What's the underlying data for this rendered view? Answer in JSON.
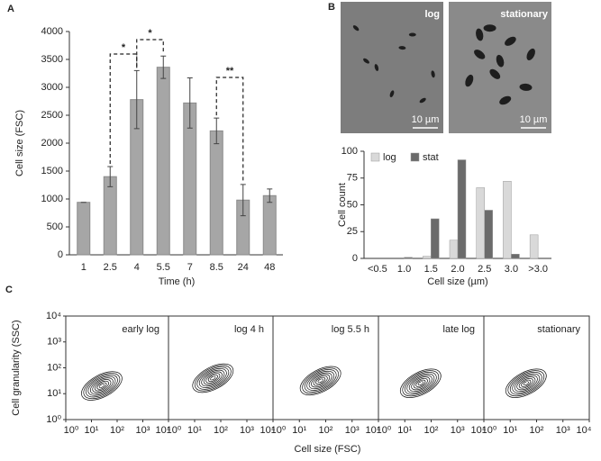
{
  "panel_labels": [
    "A",
    "B",
    "C"
  ],
  "micrographs": [
    {
      "label": "log",
      "scale_bar": "10 µm"
    },
    {
      "label": "stationary",
      "scale_bar": "10 µm"
    }
  ],
  "chart_data": [
    {
      "type": "bar",
      "categories": [
        "1",
        "2.5",
        "4",
        "5.5",
        "7",
        "8.5",
        "24",
        "48"
      ],
      "values": [
        940,
        1400,
        2780,
        3360,
        2720,
        2220,
        980,
        1060
      ],
      "errors": [
        0,
        180,
        520,
        200,
        450,
        230,
        280,
        120
      ],
      "color": "#a6a6a6",
      "ylim": [
        0,
        4000
      ],
      "yticks": [
        0,
        500,
        1000,
        1500,
        2000,
        2500,
        3000,
        3500,
        4000
      ],
      "y_label": "Cell size (FSC)",
      "x_label": "Time (h)",
      "annotations": [
        "*",
        "*",
        "**"
      ]
    },
    {
      "type": "grouped_bar",
      "categories": [
        "<0.5",
        "1.0",
        "1.5",
        "2.0",
        "2.5",
        "3.0",
        ">3.0"
      ],
      "series": [
        {
          "name": "log",
          "color": "#d9d9d9",
          "values": [
            0,
            0,
            2,
            17,
            66,
            72,
            22
          ]
        },
        {
          "name": "stat",
          "color": "#6b6b6b",
          "values": [
            0,
            1,
            37,
            92,
            45,
            4,
            0
          ]
        }
      ],
      "ylim": [
        0,
        100
      ],
      "yticks": [
        0,
        25,
        50,
        75,
        100
      ],
      "legend": "top-left",
      "y_label": "Cell count",
      "x_label": "Cell size (µm)"
    },
    {
      "type": "contour",
      "panels": [
        "early log",
        "log 4 h",
        "log 5.5 h",
        "late log",
        "stationary"
      ],
      "log_scale": true,
      "xlim": [
        1,
        10000
      ],
      "ylim": [
        1,
        10000
      ],
      "xticks": [
        {
          "value": 1,
          "label": "10⁰"
        },
        {
          "value": 10,
          "label": "10¹"
        },
        {
          "value": 100,
          "label": "10²"
        },
        {
          "value": 1000,
          "label": "10³"
        },
        {
          "value": 10000,
          "label": "10⁴"
        }
      ],
      "yticks": [
        {
          "value": 1,
          "label": "10⁰"
        },
        {
          "value": 10,
          "label": "10¹"
        },
        {
          "value": 100,
          "label": "10²"
        },
        {
          "value": 1000,
          "label": "10³"
        },
        {
          "value": 10000,
          "label": "10⁴"
        }
      ],
      "y_label": "Cell granularity (SSC)",
      "x_label": "Cell size (FSC)"
    }
  ]
}
